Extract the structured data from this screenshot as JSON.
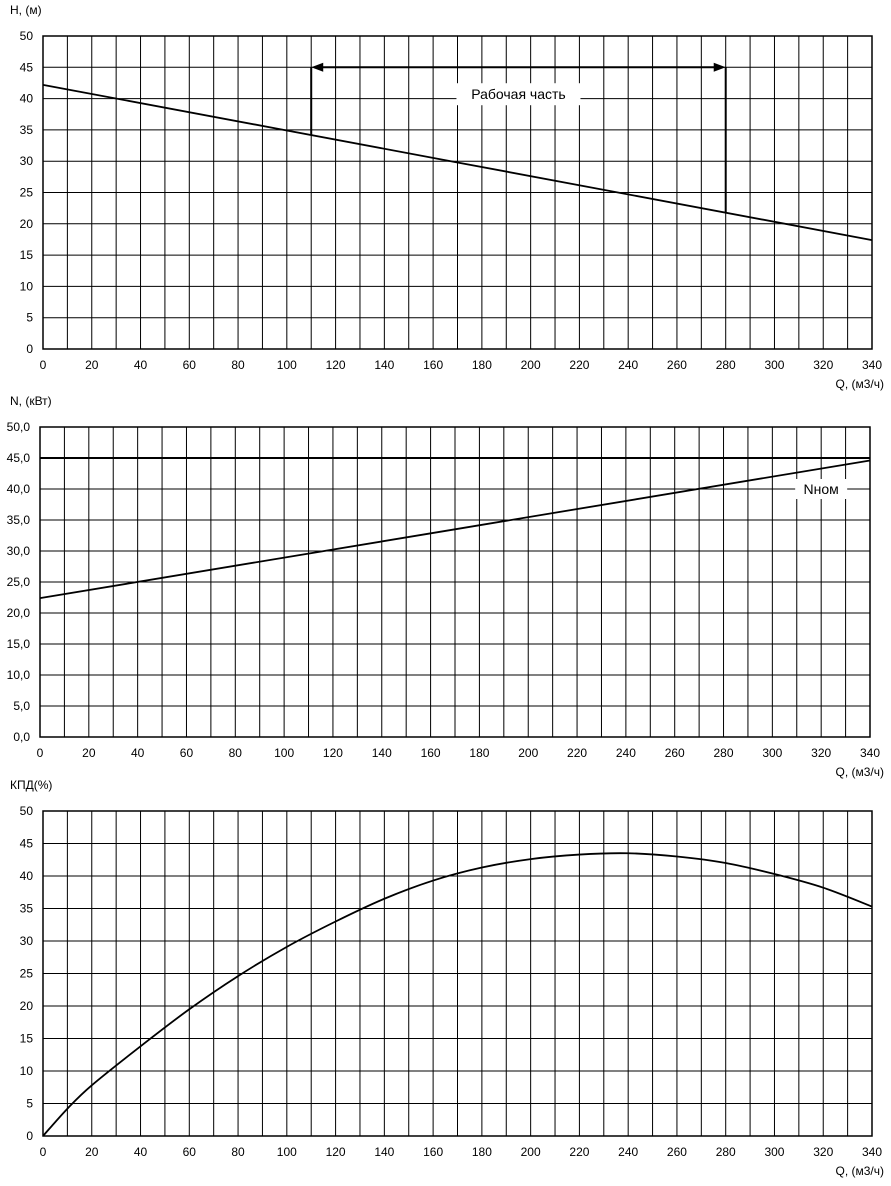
{
  "chart_data": [
    {
      "type": "line",
      "ylabel": "H, (м)",
      "xlabel": "Q, (м3/ч)",
      "xlim": [
        0,
        340
      ],
      "ylim": [
        0,
        50
      ],
      "x_ticks": [
        "0",
        "20",
        "40",
        "60",
        "80",
        "100",
        "120",
        "140",
        "160",
        "180",
        "200",
        "220",
        "240",
        "260",
        "280",
        "300",
        "320",
        "340"
      ],
      "y_ticks": [
        "0",
        "5",
        "10",
        "15",
        "20",
        "25",
        "30",
        "35",
        "40",
        "45",
        "50"
      ],
      "grid": true,
      "series": [
        {
          "x": [
            0,
            340
          ],
          "y": [
            42.2,
            17.4
          ]
        }
      ],
      "annotations": [
        {
          "text": "Рабочая часть",
          "x_from": 110,
          "x_to": 280,
          "level": 45
        }
      ]
    },
    {
      "type": "line",
      "ylabel": "N, (кВт)",
      "xlabel": "Q, (м3/ч)",
      "xlim": [
        0,
        340
      ],
      "ylim": [
        0,
        50
      ],
      "x_ticks": [
        "0",
        "20",
        "40",
        "60",
        "80",
        "100",
        "120",
        "140",
        "160",
        "180",
        "200",
        "220",
        "240",
        "260",
        "280",
        "300",
        "320",
        "340"
      ],
      "y_ticks": [
        "0,0",
        "5,0",
        "10,0",
        "15,0",
        "20,0",
        "25,0",
        "30,0",
        "35,0",
        "40,0",
        "45,0",
        "50,0"
      ],
      "grid": true,
      "series": [
        {
          "x": [
            0,
            340
          ],
          "y": [
            22.4,
            44.6
          ]
        }
      ],
      "reference_lines": [
        {
          "name": "Nном",
          "y": 45
        }
      ]
    },
    {
      "type": "line",
      "ylabel": "КПД(%)",
      "xlabel": "Q, (м3/ч)",
      "xlim": [
        0,
        340
      ],
      "ylim": [
        0,
        50
      ],
      "x_ticks": [
        "0",
        "20",
        "40",
        "60",
        "80",
        "100",
        "120",
        "140",
        "160",
        "180",
        "200",
        "220",
        "240",
        "260",
        "280",
        "300",
        "320",
        "340"
      ],
      "y_ticks": [
        "0",
        "5",
        "10",
        "15",
        "20",
        "25",
        "30",
        "35",
        "40",
        "45",
        "50"
      ],
      "grid": true,
      "series": [
        {
          "x": [
            0,
            10,
            20,
            40,
            60,
            80,
            100,
            120,
            140,
            160,
            180,
            200,
            220,
            240,
            260,
            280,
            300,
            320,
            340
          ],
          "y": [
            0,
            4.2,
            7.8,
            13.8,
            19.5,
            24.6,
            29.1,
            33.0,
            36.5,
            39.3,
            41.3,
            42.6,
            43.3,
            43.5,
            43.0,
            42.0,
            40.3,
            38.2,
            35.3
          ]
        }
      ]
    }
  ]
}
